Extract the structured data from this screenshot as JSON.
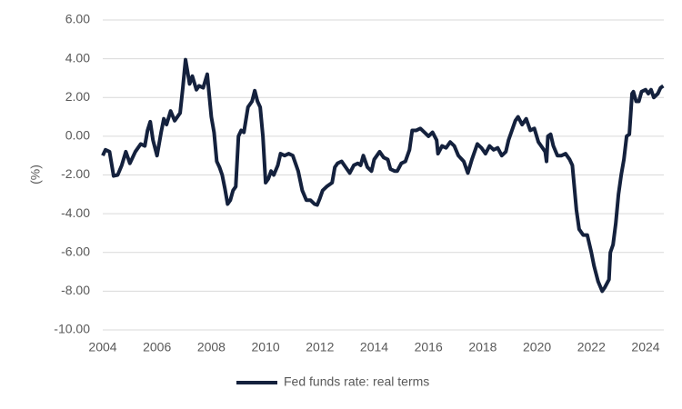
{
  "chart_data": {
    "type": "line",
    "y_label": "(%)",
    "xlim": [
      2004,
      2024.67
    ],
    "xticks": [
      2004,
      2006,
      2008,
      2010,
      2012,
      2014,
      2016,
      2018,
      2020,
      2022,
      2024
    ],
    "ylim": [
      -10,
      6
    ],
    "yticks": [
      {
        "value": -10,
        "label": "-10.00"
      },
      {
        "value": -8,
        "label": "-8.00"
      },
      {
        "value": -6,
        "label": "-6.00"
      },
      {
        "value": -4,
        "label": "-4.00"
      },
      {
        "value": -2,
        "label": "-2.00"
      },
      {
        "value": 0,
        "label": "0.00"
      },
      {
        "value": 2,
        "label": "2.00"
      },
      {
        "value": 4,
        "label": "4.00"
      },
      {
        "value": 6,
        "label": "6.00"
      }
    ],
    "grid": true,
    "legend": "bottom",
    "x": [
      2004.0,
      2004.1,
      2004.25,
      2004.4,
      2004.55,
      2004.7,
      2004.85,
      2005.0,
      2005.2,
      2005.4,
      2005.55,
      2005.65,
      2005.75,
      2005.85,
      2006.0,
      2006.15,
      2006.25,
      2006.35,
      2006.5,
      2006.65,
      2006.85,
      2006.95,
      2007.05,
      2007.2,
      2007.3,
      2007.45,
      2007.55,
      2007.7,
      2007.85,
      2008.0,
      2008.1,
      2008.2,
      2008.3,
      2008.4,
      2008.5,
      2008.6,
      2008.7,
      2008.8,
      2008.9,
      2009.0,
      2009.1,
      2009.2,
      2009.35,
      2009.5,
      2009.6,
      2009.7,
      2009.8,
      2009.9,
      2010.0,
      2010.1,
      2010.2,
      2010.3,
      2010.45,
      2010.55,
      2010.7,
      2010.85,
      2011.0,
      2011.1,
      2011.2,
      2011.35,
      2011.5,
      2011.65,
      2011.8,
      2011.9,
      2012.0,
      2012.1,
      2012.25,
      2012.45,
      2012.55,
      2012.65,
      2012.8,
      2012.95,
      2013.1,
      2013.25,
      2013.4,
      2013.5,
      2013.6,
      2013.75,
      2013.9,
      2014.0,
      2014.2,
      2014.35,
      2014.5,
      2014.6,
      2014.75,
      2014.85,
      2015.0,
      2015.15,
      2015.3,
      2015.4,
      2015.55,
      2015.7,
      2015.85,
      2016.0,
      2016.15,
      2016.3,
      2016.35,
      2016.5,
      2016.65,
      2016.8,
      2016.95,
      2017.1,
      2017.3,
      2017.45,
      2017.6,
      2017.8,
      2017.95,
      2018.1,
      2018.25,
      2018.4,
      2018.55,
      2018.7,
      2018.85,
      2018.95,
      2019.05,
      2019.2,
      2019.3,
      2019.45,
      2019.6,
      2019.75,
      2019.9,
      2020.05,
      2020.2,
      2020.3,
      2020.35,
      2020.4,
      2020.5,
      2020.6,
      2020.75,
      2020.9,
      2021.05,
      2021.2,
      2021.3,
      2021.45,
      2021.55,
      2021.7,
      2021.85,
      2022.0,
      2022.1,
      2022.25,
      2022.4,
      2022.5,
      2022.65,
      2022.7,
      2022.8,
      2022.9,
      2023.0,
      2023.1,
      2023.2,
      2023.3,
      2023.4,
      2023.5,
      2023.55,
      2023.65,
      2023.75,
      2023.85,
      2024.0,
      2024.1,
      2024.2,
      2024.3,
      2024.45,
      2024.55,
      2024.65
    ],
    "series": [
      {
        "name": "Fed funds rate: real terms",
        "color": "#14213d",
        "values": [
          -1.0,
          -0.7,
          -0.8,
          -2.05,
          -2.0,
          -1.5,
          -0.8,
          -1.4,
          -0.8,
          -0.4,
          -0.5,
          0.3,
          0.75,
          -0.2,
          -1.0,
          0.2,
          0.9,
          0.6,
          1.3,
          0.8,
          1.2,
          2.5,
          3.95,
          2.7,
          3.1,
          2.4,
          2.6,
          2.5,
          3.2,
          1.0,
          0.2,
          -1.3,
          -1.6,
          -2.0,
          -2.7,
          -3.5,
          -3.3,
          -2.8,
          -2.6,
          0.0,
          0.3,
          0.2,
          1.5,
          1.8,
          2.35,
          1.8,
          1.5,
          0.0,
          -2.4,
          -2.2,
          -1.8,
          -2.0,
          -1.5,
          -0.9,
          -1.0,
          -0.9,
          -1.0,
          -1.4,
          -1.8,
          -2.8,
          -3.3,
          -3.3,
          -3.5,
          -3.55,
          -3.2,
          -2.8,
          -2.6,
          -2.4,
          -1.6,
          -1.4,
          -1.3,
          -1.6,
          -1.9,
          -1.5,
          -1.4,
          -1.5,
          -1.0,
          -1.6,
          -1.8,
          -1.2,
          -0.8,
          -1.1,
          -1.2,
          -1.7,
          -1.8,
          -1.8,
          -1.4,
          -1.3,
          -0.7,
          0.3,
          0.3,
          0.4,
          0.2,
          0.0,
          0.2,
          -0.2,
          -0.9,
          -0.5,
          -0.6,
          -0.3,
          -0.5,
          -1.0,
          -1.3,
          -1.9,
          -1.2,
          -0.4,
          -0.6,
          -0.9,
          -0.5,
          -0.7,
          -0.6,
          -1.0,
          -0.8,
          -0.2,
          0.2,
          0.8,
          1.0,
          0.6,
          0.9,
          0.3,
          0.4,
          -0.3,
          -0.6,
          -0.8,
          -1.3,
          0.0,
          0.1,
          -0.5,
          -1.0,
          -1.0,
          -0.9,
          -1.2,
          -1.5,
          -3.8,
          -4.8,
          -5.1,
          -5.1,
          -6.0,
          -6.7,
          -7.5,
          -8.0,
          -7.8,
          -7.4,
          -6.0,
          -5.6,
          -4.5,
          -3.0,
          -2.0,
          -1.2,
          0.0,
          0.1,
          2.2,
          2.3,
          1.8,
          1.8,
          2.3,
          2.4,
          2.2,
          2.4,
          2.0,
          2.2,
          2.5,
          2.6
        ]
      }
    ]
  }
}
